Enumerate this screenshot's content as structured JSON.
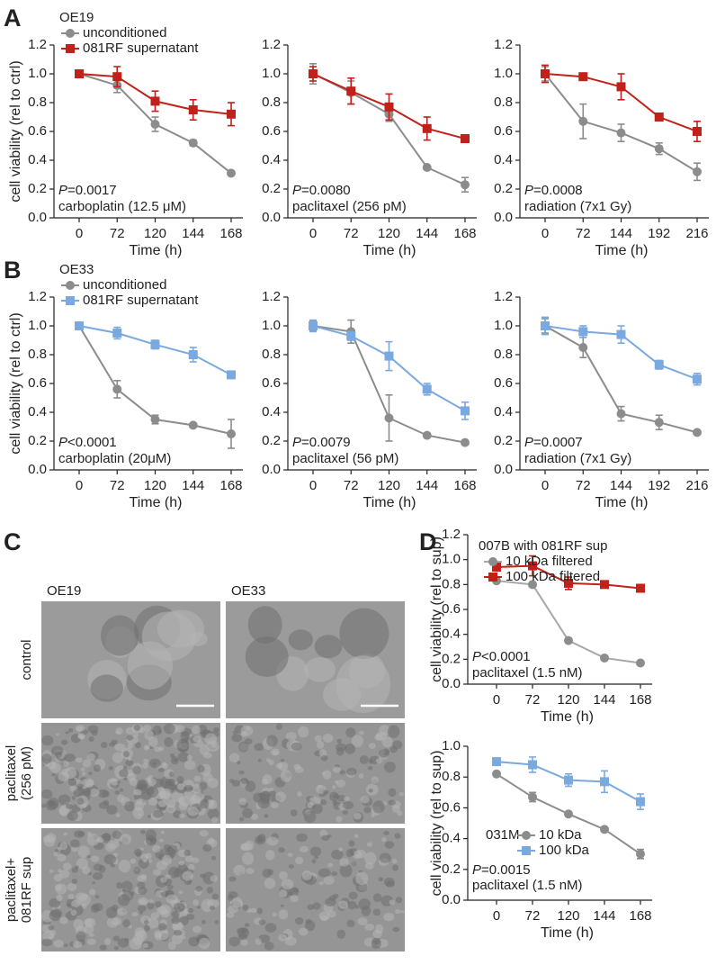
{
  "panel_labels": [
    "A",
    "B",
    "C",
    "D"
  ],
  "micrographs": {
    "columns": [
      "OE19",
      "OE33"
    ],
    "rows": [
      [
        "control"
      ],
      [
        "paclitaxel",
        "(256 pM)"
      ],
      [
        "paclitaxel+",
        "081RF sup"
      ]
    ]
  },
  "chart_data": [
    {
      "type": "line",
      "legend_title": "OE19",
      "ylabel": "cell viability (rel to ctrl)",
      "xlabel": "Time (h)",
      "categories": [
        "0",
        "72",
        "120",
        "144",
        "168"
      ],
      "series": [
        {
          "name": "unconditioned",
          "color": "#8c8c8c",
          "marker": "circle",
          "values": [
            1.0,
            0.92,
            0.65,
            0.52,
            0.31
          ],
          "errors": [
            0.01,
            0.05,
            0.05,
            0.02,
            0.01
          ]
        },
        {
          "name": "081RF supernatant",
          "color": "#c0211a",
          "marker": "square",
          "values": [
            1.0,
            0.98,
            0.81,
            0.75,
            0.72
          ],
          "errors": [
            0.01,
            0.07,
            0.07,
            0.07,
            0.08
          ]
        }
      ],
      "ylim": [
        0,
        1.2
      ],
      "yticks": [
        {
          "value": 0,
          "label": "0.0"
        },
        {
          "value": 0.2,
          "label": "0.2"
        },
        {
          "value": 0.4,
          "label": "0.4"
        },
        {
          "value": 0.6,
          "label": "0.6"
        },
        {
          "value": 0.8,
          "label": "0.8"
        },
        {
          "value": 1.0,
          "label": "1.0"
        },
        {
          "value": 1.2,
          "label": "1.2"
        }
      ],
      "pvalue": {
        "symbol": "P",
        "text": "=0.0017"
      },
      "condition": "carboplatin (12.5 μM)"
    },
    {
      "type": "line",
      "xlabel": "Time (h)",
      "categories": [
        "0",
        "72",
        "120",
        "144",
        "168"
      ],
      "series": [
        {
          "color": "#8c8c8c",
          "marker": "circle",
          "values": [
            1.0,
            0.87,
            0.72,
            0.35,
            0.23
          ],
          "errors": [
            0.07,
            0.08,
            0.05,
            0.01,
            0.05
          ]
        },
        {
          "color": "#c0211a",
          "marker": "square",
          "values": [
            1.0,
            0.88,
            0.77,
            0.62,
            0.55
          ],
          "errors": [
            0.05,
            0.09,
            0.09,
            0.08,
            0.02
          ]
        }
      ],
      "ylim": [
        0,
        1.2
      ],
      "yticks": [
        {
          "value": 0,
          "label": "0.0"
        },
        {
          "value": 0.2,
          "label": "0.2"
        },
        {
          "value": 0.4,
          "label": "0.4"
        },
        {
          "value": 0.6,
          "label": "0.6"
        },
        {
          "value": 0.8,
          "label": "0.8"
        },
        {
          "value": 1.0,
          "label": "1.0"
        },
        {
          "value": 1.2,
          "label": "1.2"
        }
      ],
      "pvalue": {
        "symbol": "P",
        "text": "=0.0080"
      },
      "condition": "paclitaxel (256 pM)"
    },
    {
      "type": "line",
      "xlabel": "Time (h)",
      "categories": [
        "0",
        "72",
        "144",
        "192",
        "216"
      ],
      "series": [
        {
          "color": "#8c8c8c",
          "marker": "circle",
          "values": [
            1.0,
            0.67,
            0.59,
            0.48,
            0.32
          ],
          "errors": [
            0.05,
            0.12,
            0.06,
            0.04,
            0.06
          ]
        },
        {
          "color": "#c0211a",
          "marker": "square",
          "values": [
            1.0,
            0.98,
            0.91,
            0.7,
            0.6
          ],
          "errors": [
            0.06,
            0.02,
            0.09,
            0.01,
            0.07
          ]
        }
      ],
      "ylim": [
        0,
        1.2
      ],
      "yticks": [
        {
          "value": 0,
          "label": "0.0"
        },
        {
          "value": 0.2,
          "label": "0.2"
        },
        {
          "value": 0.4,
          "label": "0.4"
        },
        {
          "value": 0.6,
          "label": "0.6"
        },
        {
          "value": 0.8,
          "label": "0.8"
        },
        {
          "value": 1.0,
          "label": "1.0"
        },
        {
          "value": 1.2,
          "label": "1.2"
        }
      ],
      "pvalue": {
        "symbol": "P",
        "text": "=0.0008"
      },
      "condition": "radiation (7x1 Gy)"
    },
    {
      "type": "line",
      "legend_title": "OE33",
      "ylabel": "cell viability (rel to ctrl)",
      "xlabel": "Time (h)",
      "categories": [
        "0",
        "72",
        "120",
        "144",
        "168"
      ],
      "series": [
        {
          "name": "unconditioned",
          "color": "#8c8c8c",
          "marker": "circle",
          "values": [
            1.0,
            0.56,
            0.35,
            0.31,
            0.25
          ],
          "errors": [
            0.02,
            0.06,
            0.03,
            0.01,
            0.1
          ]
        },
        {
          "name": "081RF supernatant",
          "color": "#7aa9e0",
          "marker": "square",
          "values": [
            1.0,
            0.95,
            0.87,
            0.8,
            0.66
          ],
          "errors": [
            0.02,
            0.04,
            0.03,
            0.05,
            0.01
          ]
        }
      ],
      "ylim": [
        0,
        1.2
      ],
      "yticks": [
        {
          "value": 0,
          "label": "0.0"
        },
        {
          "value": 0.2,
          "label": "0.2"
        },
        {
          "value": 0.4,
          "label": "0.4"
        },
        {
          "value": 0.6,
          "label": "0.6"
        },
        {
          "value": 0.8,
          "label": "0.8"
        },
        {
          "value": 1.0,
          "label": "1.0"
        },
        {
          "value": 1.2,
          "label": "1.2"
        }
      ],
      "pvalue": {
        "symbol": "P",
        "text": "<0.0001"
      },
      "condition": "carboplatin (20μM)"
    },
    {
      "type": "line",
      "xlabel": "Time (h)",
      "categories": [
        "0",
        "72",
        "120",
        "144",
        "168"
      ],
      "series": [
        {
          "color": "#8c8c8c",
          "marker": "circle",
          "values": [
            1.0,
            0.96,
            0.36,
            0.24,
            0.19
          ],
          "errors": [
            0.03,
            0.08,
            0.16,
            0.01,
            0.01
          ]
        },
        {
          "color": "#7aa9e0",
          "marker": "square",
          "values": [
            1.0,
            0.93,
            0.79,
            0.56,
            0.41
          ],
          "errors": [
            0.04,
            0.03,
            0.1,
            0.04,
            0.06
          ]
        }
      ],
      "ylim": [
        0,
        1.2
      ],
      "yticks": [
        {
          "value": 0,
          "label": "0.0"
        },
        {
          "value": 0.2,
          "label": "0.2"
        },
        {
          "value": 0.4,
          "label": "0.4"
        },
        {
          "value": 0.6,
          "label": "0.6"
        },
        {
          "value": 0.8,
          "label": "0.8"
        },
        {
          "value": 1.0,
          "label": "1.0"
        },
        {
          "value": 1.2,
          "label": "1.2"
        }
      ],
      "pvalue": {
        "symbol": "P",
        "text": "=0.0079"
      },
      "condition": "paclitaxel (56 pM)"
    },
    {
      "type": "line",
      "xlabel": "Time (h)",
      "categories": [
        "0",
        "72",
        "144",
        "192",
        "216"
      ],
      "series": [
        {
          "color": "#8c8c8c",
          "marker": "circle",
          "values": [
            1.0,
            0.85,
            0.39,
            0.33,
            0.26
          ],
          "errors": [
            0.05,
            0.07,
            0.05,
            0.05,
            0.01
          ]
        },
        {
          "color": "#7aa9e0",
          "marker": "square",
          "values": [
            1.0,
            0.96,
            0.94,
            0.73,
            0.63
          ],
          "errors": [
            0.06,
            0.04,
            0.06,
            0.03,
            0.04
          ]
        }
      ],
      "ylim": [
        0,
        1.2
      ],
      "yticks": [
        {
          "value": 0,
          "label": "0.0"
        },
        {
          "value": 0.2,
          "label": "0.2"
        },
        {
          "value": 0.4,
          "label": "0.4"
        },
        {
          "value": 0.6,
          "label": "0.6"
        },
        {
          "value": 0.8,
          "label": "0.8"
        },
        {
          "value": 1.0,
          "label": "1.0"
        },
        {
          "value": 1.2,
          "label": "1.2"
        }
      ],
      "pvalue": {
        "symbol": "P",
        "text": "=0.0007"
      },
      "condition": "radiation (7x1 Gy)"
    },
    {
      "type": "line",
      "legend_title": "007B with 081RF sup",
      "ylabel": "cell viability (rel to sup)",
      "xlabel": "Time (h)",
      "categories": [
        "0",
        "72",
        "120",
        "144",
        "168"
      ],
      "series": [
        {
          "name": "10 kDa filtered",
          "color": "#a8a8a8",
          "marker": "circle",
          "values": [
            0.83,
            0.8,
            0.35,
            0.21,
            0.17
          ],
          "errors": [
            0.01,
            0.01,
            0.01,
            0.01,
            0.01
          ]
        },
        {
          "name": "100 kDa filtered",
          "color": "#c0211a",
          "marker": "square",
          "values": [
            0.94,
            0.95,
            0.81,
            0.8,
            0.77
          ],
          "errors": [
            0.03,
            0.08,
            0.05,
            0.02,
            0.02
          ]
        }
      ],
      "ylim": [
        0,
        1.2
      ],
      "yticks": [
        {
          "value": 0,
          "label": "0.0"
        },
        {
          "value": 0.2,
          "label": "0.2"
        },
        {
          "value": 0.4,
          "label": "0.4"
        },
        {
          "value": 0.6,
          "label": "0.6"
        },
        {
          "value": 0.8,
          "label": "0.8"
        },
        {
          "value": 1.0,
          "label": "1.0"
        },
        {
          "value": 1.2,
          "label": "1.2"
        }
      ],
      "pvalue": {
        "symbol": "P",
        "text": "<0.0001"
      },
      "condition": "paclitaxel (1.5 nM)"
    },
    {
      "type": "line",
      "legend_title": "031M",
      "ylabel": "cell viability (rel to sup)",
      "xlabel": "Time (h)",
      "categories": [
        "0",
        "72",
        "120",
        "144",
        "168"
      ],
      "series": [
        {
          "name": "10 kDa",
          "color": "#8c8c8c",
          "marker": "circle",
          "values": [
            0.82,
            0.67,
            0.56,
            0.46,
            0.3
          ],
          "errors": [
            0.01,
            0.03,
            0.01,
            0.01,
            0.03
          ]
        },
        {
          "name": "100 kDa",
          "color": "#7aa9e0",
          "marker": "square",
          "values": [
            0.9,
            0.88,
            0.78,
            0.77,
            0.64
          ],
          "errors": [
            0.01,
            0.05,
            0.04,
            0.07,
            0.05
          ]
        }
      ],
      "ylim": [
        0,
        1.0
      ],
      "yticks": [
        {
          "value": 0,
          "label": "0.0"
        },
        {
          "value": 0.2,
          "label": "0.2"
        },
        {
          "value": 0.4,
          "label": "0.4"
        },
        {
          "value": 0.6,
          "label": "0.6"
        },
        {
          "value": 0.8,
          "label": "0.8"
        },
        {
          "value": 1.0,
          "label": "1.0"
        }
      ],
      "pvalue": {
        "symbol": "P",
        "text": "=0.0015"
      },
      "condition": "paclitaxel (1.5 nM)"
    }
  ]
}
